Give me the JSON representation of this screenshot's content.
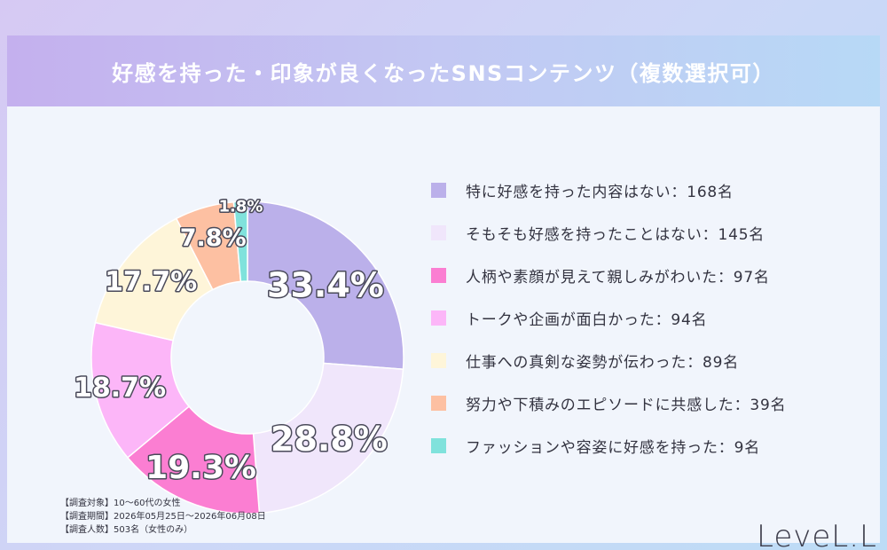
{
  "title": "好感を持った・印象が良くなったSNSコンテンツ（複数選択可）",
  "chart_data": {
    "type": "pie",
    "subtype": "donut",
    "start_angle": "top, clockwise",
    "labels": [
      "特に好感を持った内容はない",
      "そもそも好感を持ったことはない",
      "人柄や素顔が見えて親しみがわいた",
      "トークや企画が面白かった",
      "仕事への真剣な姿勢が伝わった",
      "努力や下積みのエピソードに共感した",
      "ファッションや容姿に好感を持った"
    ],
    "legend_texts": [
      "特に好感を持った内容はない：168名",
      "そもそも好感を持ったことはない：145名",
      "人柄や素顔が見えて親しみがわいた：97名",
      "トークや企画が面白かった：94名",
      "仕事への真剣な姿勢が伝わった：89名",
      "努力や下積みのエピソードに共感した：39名",
      "ファッションや容姿に好感を持った：9名"
    ],
    "counts": [
      168,
      145,
      97,
      94,
      89,
      39,
      9
    ],
    "values": [
      33.4,
      28.8,
      19.3,
      18.7,
      17.7,
      7.8,
      1.8
    ],
    "data_labels": [
      "33.4%",
      "28.8%",
      "19.3%",
      "18.7%",
      "17.7%",
      "7.8%",
      "1.8%"
    ],
    "colors": [
      "#bbb0ea",
      "#f0e6fb",
      "#fb7ed2",
      "#fcb6f8",
      "#fef5d9",
      "#fdc0a2",
      "#80e2dc"
    ],
    "legend_position": "right"
  },
  "notes": [
    "【調査対象】10～60代の女性",
    "【調査期間】2026年05月25日～2026年06月08日",
    "【調査人数】503名（女性のみ）"
  ],
  "brand": "LeveL.L"
}
